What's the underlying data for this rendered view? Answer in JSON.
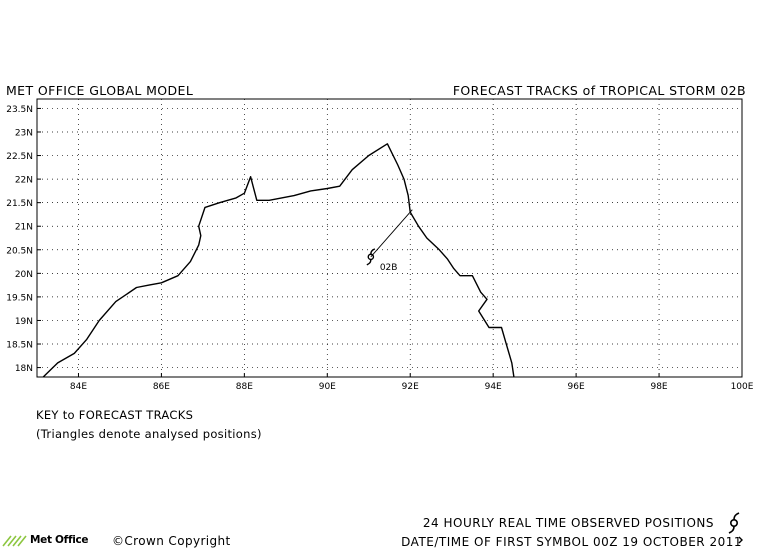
{
  "header": {
    "left_title": "MET OFFICE GLOBAL MODEL",
    "right_title": "FORECAST TRACKS of TROPICAL STORM 02B"
  },
  "map": {
    "lon_range": [
      83.0,
      100.0
    ],
    "lat_range": [
      17.8,
      23.7
    ],
    "lon_ticks": [
      "84E",
      "86E",
      "88E",
      "90E",
      "92E",
      "94E",
      "96E",
      "98E",
      "100E"
    ],
    "lat_ticks": [
      "18N",
      "18.5N",
      "19N",
      "19.5N",
      "20N",
      "20.5N",
      "21N",
      "21.5N",
      "22N",
      "22.5N",
      "23N",
      "23.5N"
    ],
    "grid": "dotted",
    "coastline": [
      [
        83.15,
        17.8
      ],
      [
        83.5,
        18.1
      ],
      [
        83.9,
        18.3
      ],
      [
        84.2,
        18.6
      ],
      [
        84.5,
        19.0
      ],
      [
        84.9,
        19.4
      ],
      [
        85.4,
        19.7
      ],
      [
        85.7,
        19.75
      ],
      [
        86.0,
        19.8
      ],
      [
        86.4,
        19.95
      ],
      [
        86.7,
        20.25
      ],
      [
        86.9,
        20.6
      ],
      [
        86.95,
        20.8
      ],
      [
        86.9,
        21.0
      ],
      [
        87.05,
        21.4
      ],
      [
        87.4,
        21.5
      ],
      [
        87.8,
        21.6
      ],
      [
        88.0,
        21.7
      ],
      [
        88.15,
        22.05
      ],
      [
        88.3,
        21.55
      ],
      [
        88.6,
        21.55
      ],
      [
        89.2,
        21.65
      ],
      [
        89.6,
        21.75
      ],
      [
        90.0,
        21.8
      ],
      [
        90.3,
        21.85
      ],
      [
        90.6,
        22.2
      ],
      [
        91.0,
        22.5
      ],
      [
        91.45,
        22.75
      ],
      [
        91.7,
        22.3
      ],
      [
        91.85,
        22.0
      ],
      [
        91.95,
        21.65
      ],
      [
        92.0,
        21.3
      ],
      [
        92.2,
        21.0
      ],
      [
        92.4,
        20.75
      ],
      [
        92.7,
        20.5
      ],
      [
        92.9,
        20.3
      ],
      [
        93.05,
        20.1
      ],
      [
        93.2,
        19.95
      ],
      [
        93.5,
        19.95
      ],
      [
        93.7,
        19.6
      ],
      [
        93.85,
        19.45
      ],
      [
        93.65,
        19.2
      ],
      [
        93.9,
        18.85
      ],
      [
        94.2,
        18.85
      ],
      [
        94.3,
        18.55
      ],
      [
        94.45,
        18.1
      ],
      [
        94.5,
        17.8
      ]
    ]
  },
  "storm": {
    "name": "02B",
    "observed_position": {
      "lon": 91.05,
      "lat": 20.35
    },
    "track_to": {
      "lon": 92.05,
      "lat": 21.35
    }
  },
  "key": {
    "title": "KEY to FORECAST TRACKS",
    "note": "(Triangles denote analysed positions)"
  },
  "footer": {
    "logo_text": "Met Office",
    "copyright": "©Crown Copyright",
    "observed": "24 HOURLY REAL TIME OBSERVED POSITIONS",
    "datetime": "DATE/TIME OF FIRST SYMBOL 00Z 19 OCTOBER 2011"
  },
  "icons": {
    "storm_marker": "tropical-storm-symbol-icon",
    "logo": "met-office-logo-icon"
  },
  "colors": {
    "line": "#000000",
    "grid": "#000000",
    "logo_green": "#8cc63f"
  }
}
